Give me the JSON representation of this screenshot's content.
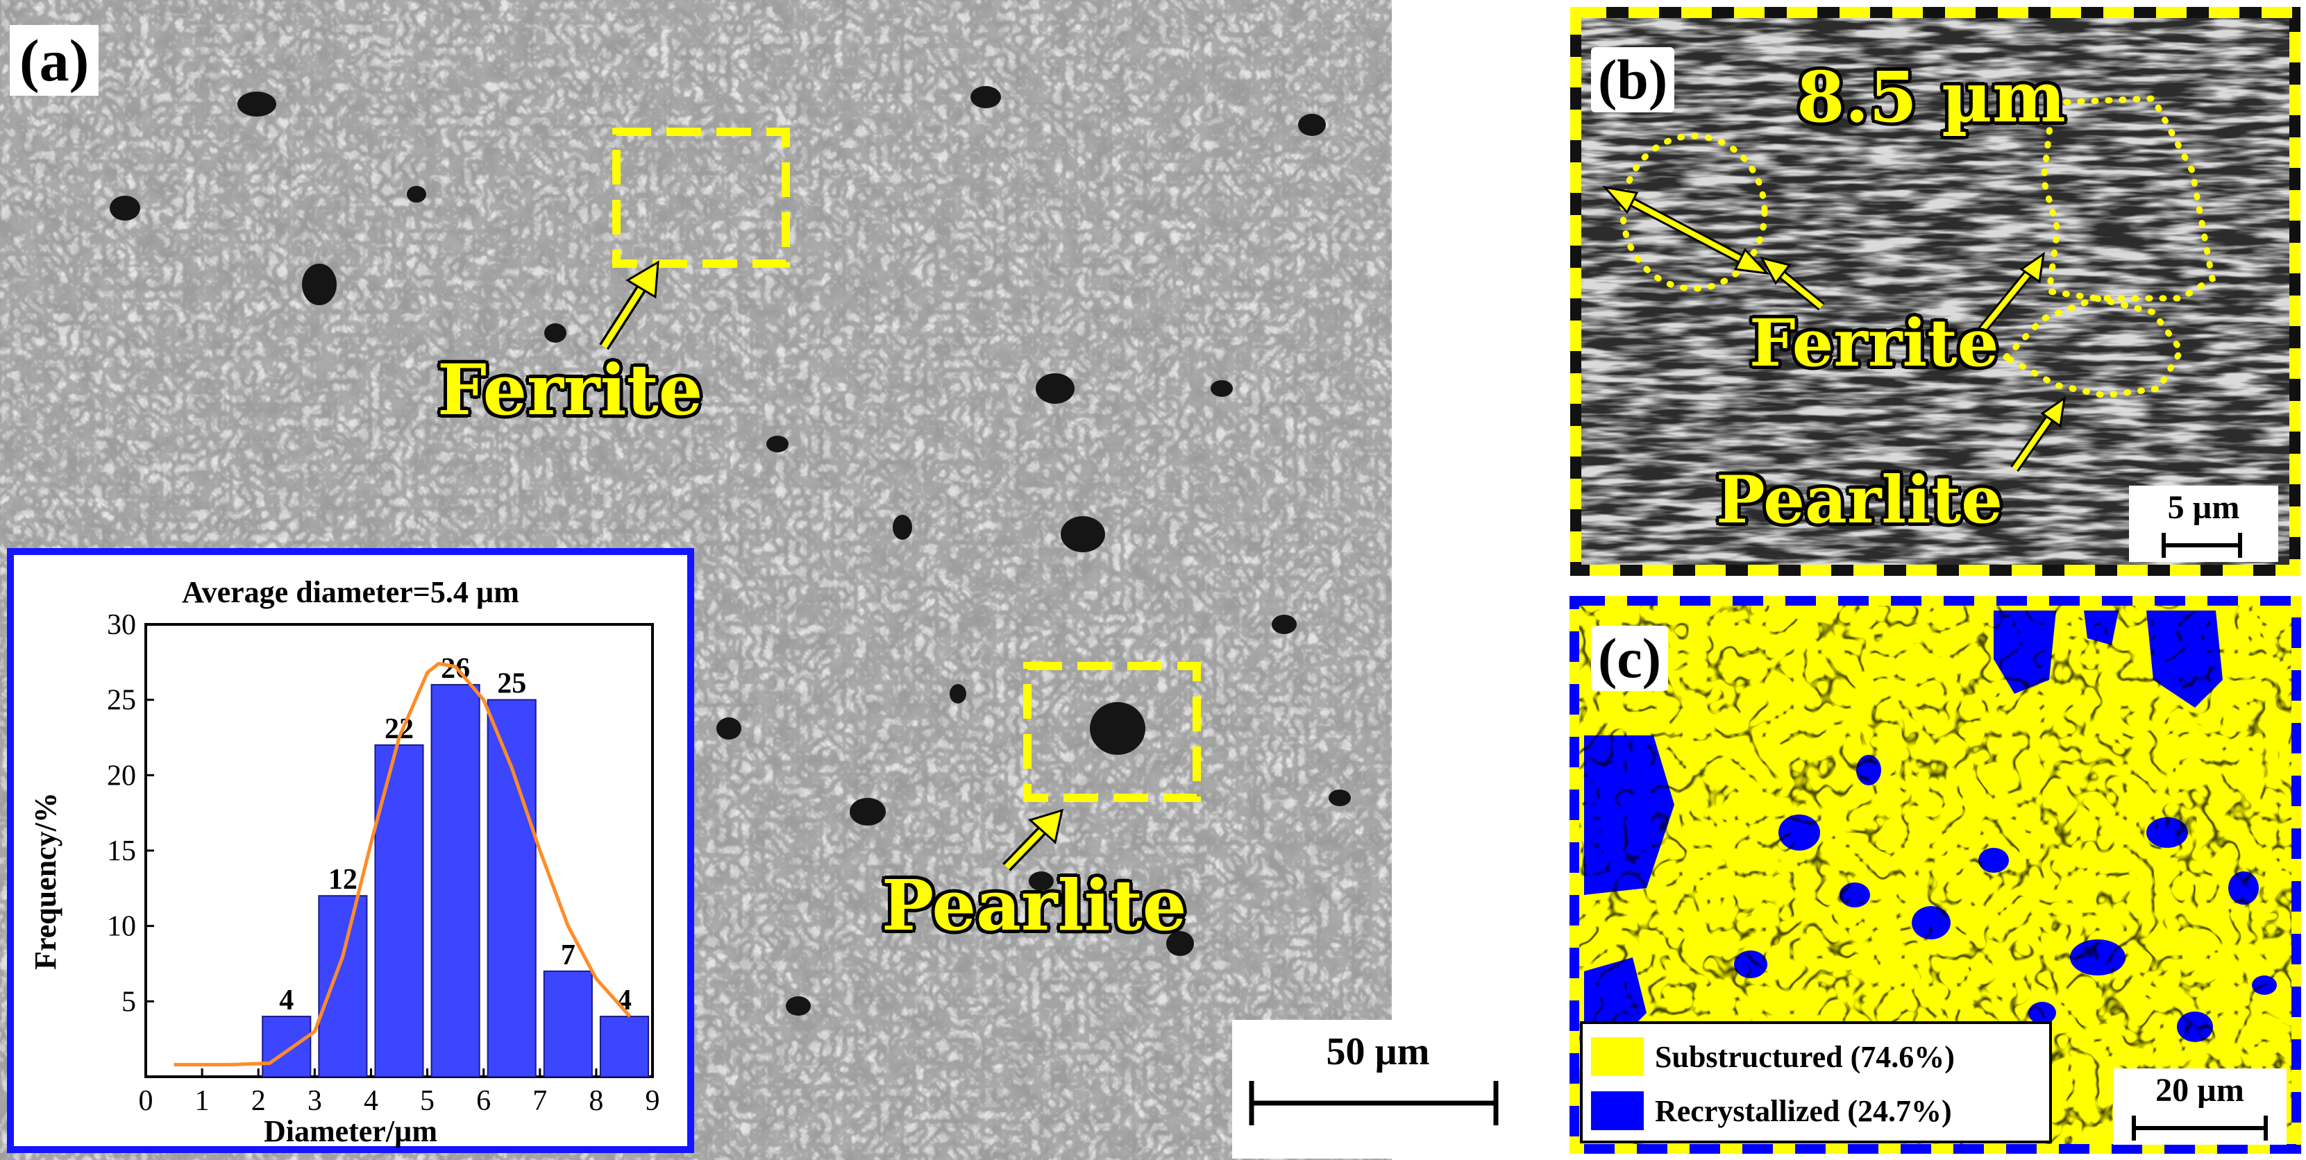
{
  "panel_a": {
    "label": "(a)",
    "callouts": {
      "ferrite": "Ferrite",
      "pearlite": "Pearlite"
    },
    "scale_bar": "50 µm"
  },
  "panel_b": {
    "label": "(b)",
    "measurement": "8.5 µm",
    "callouts": {
      "ferrite": "Ferrite",
      "pearlite": "Pearlite"
    },
    "scale_bar": "5 µm"
  },
  "panel_c": {
    "label": "(c)",
    "legend": [
      {
        "label": "Substructured (74.6%)",
        "color": "#ffff00"
      },
      {
        "label": "Recrystallized (24.7%)",
        "color": "#0000ff"
      }
    ],
    "scale_bar": "20 µm"
  },
  "chart_data": {
    "type": "bar",
    "title": "Average diameter=5.4 µm",
    "xlabel": "Diameter/µm",
    "ylabel": "Frequency/%",
    "x": [
      2.5,
      3.5,
      4.5,
      5.5,
      6.5,
      7.5,
      8.5
    ],
    "values": [
      4,
      12,
      22,
      26,
      25,
      7,
      4
    ],
    "data_labels": [
      "4",
      "12",
      "22",
      "26",
      "25",
      "7",
      "4"
    ],
    "xlim": [
      0,
      9
    ],
    "ylim": [
      0,
      30
    ],
    "xticks": [
      "0",
      "1",
      "2",
      "3",
      "4",
      "5",
      "6",
      "7",
      "8",
      "9"
    ],
    "yticks": [
      "5",
      "10",
      "15",
      "20",
      "25",
      "30"
    ],
    "bar_color": "#3c46ff",
    "fit_curve": {
      "type": "line",
      "color": "#ff8c28",
      "points": [
        [
          0.5,
          0.8
        ],
        [
          1.5,
          0.8
        ],
        [
          2.2,
          0.9
        ],
        [
          3.0,
          3.0
        ],
        [
          3.5,
          8.0
        ],
        [
          4.0,
          15.5
        ],
        [
          4.5,
          22.5
        ],
        [
          5.0,
          26.8
        ],
        [
          5.2,
          27.4
        ],
        [
          5.5,
          27.2
        ],
        [
          6.0,
          25.0
        ],
        [
          6.5,
          20.5
        ],
        [
          7.0,
          15.0
        ],
        [
          7.5,
          10.0
        ],
        [
          8.0,
          6.5
        ],
        [
          8.6,
          4.0
        ]
      ]
    }
  },
  "colors": {
    "highlight": "#ffff00",
    "histogram_frame": "#1414ff"
  }
}
